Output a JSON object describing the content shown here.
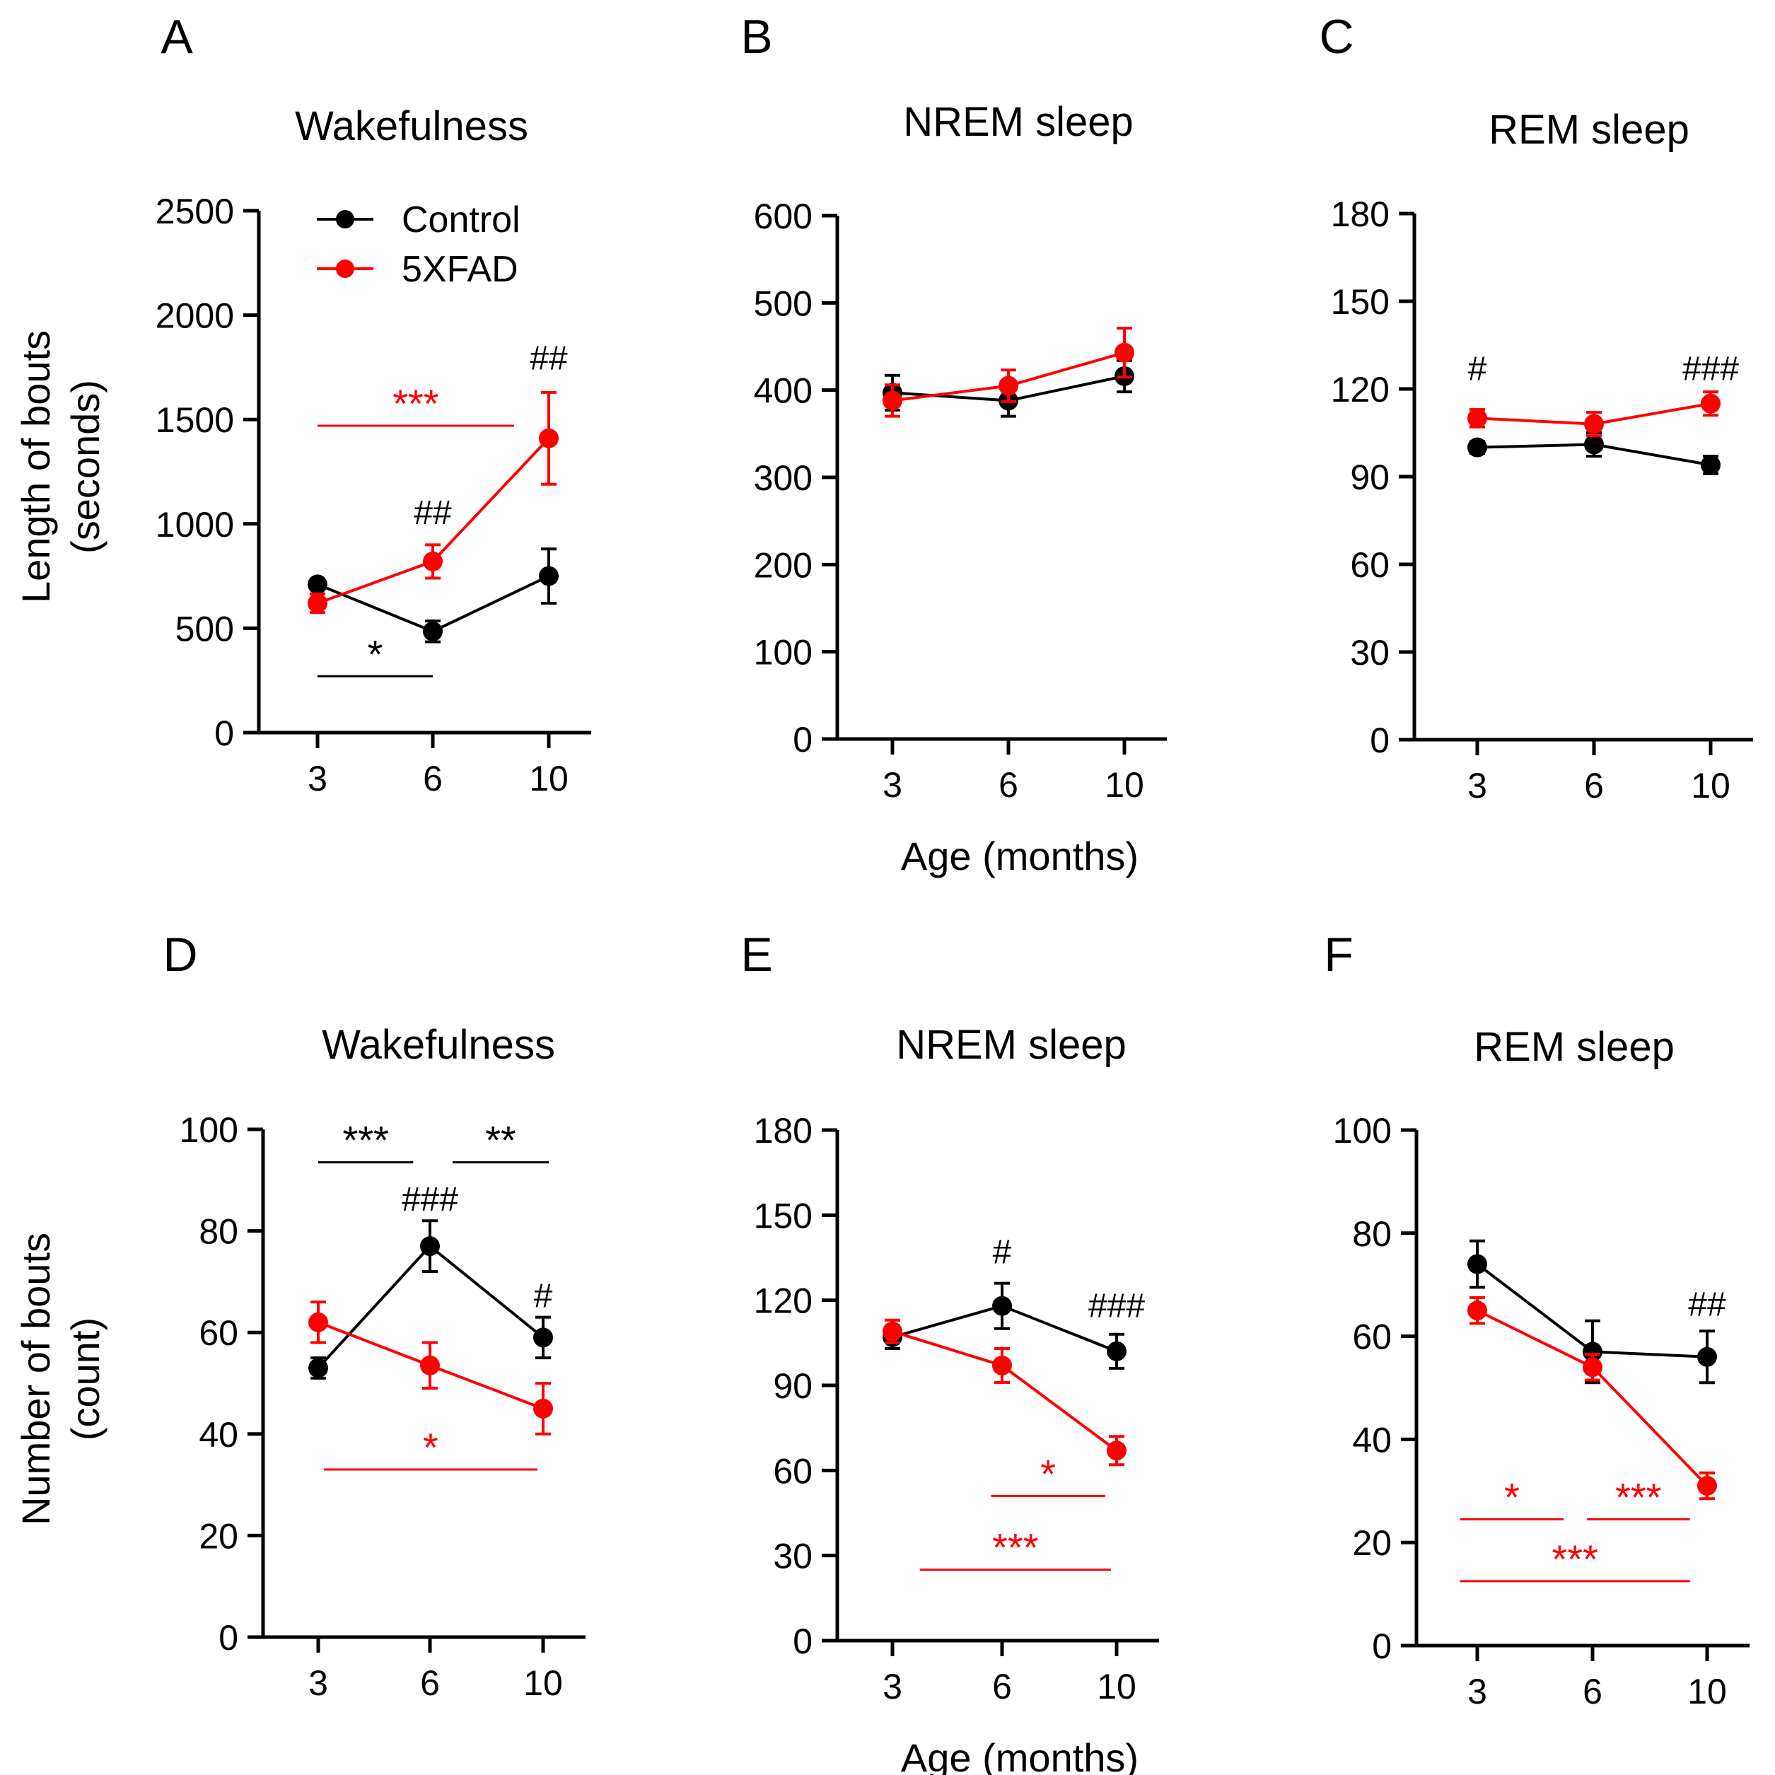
{
  "colors": {
    "control": "#000000",
    "xfad": "#ff0000",
    "axis": "#000000"
  },
  "shared": {
    "x_axis_label": "Age (months)",
    "y_label_top": [
      "Length of bouts",
      "(seconds)"
    ],
    "y_label_bottom": [
      "Number of bouts",
      "(count)"
    ]
  },
  "chart_data": [
    {
      "type": "line",
      "panel": "A",
      "title": "Wakefulness",
      "categories": [
        "3",
        "6",
        "10"
      ],
      "ylim": [
        0,
        2500
      ],
      "yticks": [
        0,
        500,
        1000,
        1500,
        2000,
        2500
      ],
      "legend": {
        "position": "top-left",
        "entries": [
          "Control",
          "5XFAD"
        ]
      },
      "series": [
        {
          "name": "Control",
          "values": [
            710,
            485,
            750
          ],
          "errors": [
            20,
            50,
            130
          ]
        },
        {
          "name": "5XFAD",
          "values": [
            620,
            820,
            1410
          ],
          "errors": [
            45,
            80,
            220
          ]
        }
      ],
      "annotations": [
        {
          "text": "##",
          "color": "black",
          "cat": 1,
          "y": 1000
        },
        {
          "text": "##",
          "color": "black",
          "cat": 2,
          "y": 1740
        }
      ],
      "brackets": [
        {
          "text": "***",
          "color": "red",
          "from": 0,
          "to": 1.7,
          "y": 1470
        },
        {
          "text": "*",
          "color": "black",
          "from": 0,
          "to": 1,
          "y": 270
        }
      ]
    },
    {
      "type": "line",
      "panel": "B",
      "title": "NREM sleep",
      "categories": [
        "3",
        "6",
        "10"
      ],
      "ylim": [
        0,
        600
      ],
      "yticks": [
        0,
        100,
        200,
        300,
        400,
        500,
        600
      ],
      "show_x_label": true,
      "series": [
        {
          "name": "Control",
          "values": [
            397,
            388,
            416
          ],
          "errors": [
            20,
            18,
            18
          ]
        },
        {
          "name": "5XFAD",
          "values": [
            388,
            405,
            443
          ],
          "errors": [
            18,
            18,
            28
          ]
        }
      ],
      "annotations": [],
      "brackets": []
    },
    {
      "type": "line",
      "panel": "C",
      "title": "REM sleep",
      "categories": [
        "3",
        "6",
        "10"
      ],
      "ylim": [
        0,
        180
      ],
      "yticks": [
        0,
        30,
        60,
        90,
        120,
        150,
        180
      ],
      "series": [
        {
          "name": "Control",
          "values": [
            100,
            101,
            94
          ],
          "errors": [
            2,
            4,
            3
          ]
        },
        {
          "name": "5XFAD",
          "values": [
            110,
            108,
            115
          ],
          "errors": [
            3,
            4,
            4
          ]
        }
      ],
      "annotations": [
        {
          "text": "#",
          "color": "black",
          "cat": 0,
          "y": 123
        },
        {
          "text": "###",
          "color": "black",
          "cat": 2,
          "y": 123
        }
      ],
      "brackets": []
    },
    {
      "type": "line",
      "panel": "D",
      "title": "Wakefulness",
      "categories": [
        "3",
        "6",
        "10"
      ],
      "ylim": [
        0,
        100
      ],
      "yticks": [
        0,
        20,
        40,
        60,
        80,
        100
      ],
      "series": [
        {
          "name": "Control",
          "values": [
            53,
            77,
            59
          ],
          "errors": [
            2,
            5,
            4
          ]
        },
        {
          "name": "5XFAD",
          "values": [
            62,
            53.5,
            45
          ],
          "errors": [
            4,
            4.5,
            5
          ]
        }
      ],
      "annotations": [
        {
          "text": "###",
          "color": "black",
          "cat": 1,
          "y": 84
        },
        {
          "text": "#",
          "color": "black",
          "cat": 2,
          "y": 65
        }
      ],
      "brackets": [
        {
          "text": "***",
          "color": "black",
          "from": 0,
          "to": 0.85,
          "y": 93.5
        },
        {
          "text": "**",
          "color": "black",
          "from": 1.2,
          "to": 2.05,
          "y": 93.5
        },
        {
          "text": "*",
          "color": "red",
          "from": 0.05,
          "to": 1.95,
          "y": 33
        }
      ]
    },
    {
      "type": "line",
      "panel": "E",
      "title": "NREM sleep",
      "categories": [
        "3",
        "6",
        "10"
      ],
      "ylim": [
        0,
        180
      ],
      "yticks": [
        0,
        30,
        60,
        90,
        120,
        150,
        180
      ],
      "show_x_label": true,
      "series": [
        {
          "name": "Control",
          "values": [
            107,
            118,
            102
          ],
          "errors": [
            4,
            8,
            6
          ]
        },
        {
          "name": "5XFAD",
          "values": [
            109,
            97,
            67
          ],
          "errors": [
            4,
            6,
            5
          ]
        }
      ],
      "annotations": [
        {
          "text": "#",
          "color": "black",
          "cat": 1,
          "y": 133
        },
        {
          "text": "###",
          "color": "black",
          "cat": 2,
          "y": 114
        }
      ],
      "brackets": [
        {
          "text": "*",
          "color": "red",
          "from": 0.9,
          "to": 1.9,
          "y": 51
        },
        {
          "text": "***",
          "color": "red",
          "from": 0.25,
          "to": 1.95,
          "y": 25
        }
      ]
    },
    {
      "type": "line",
      "panel": "F",
      "title": "REM sleep",
      "categories": [
        "3",
        "6",
        "10"
      ],
      "ylim": [
        0,
        100
      ],
      "yticks": [
        0,
        20,
        40,
        60,
        80,
        100
      ],
      "series": [
        {
          "name": "Control",
          "values": [
            74,
            57,
            56
          ],
          "errors": [
            4.5,
            6,
            5
          ]
        },
        {
          "name": "5XFAD",
          "values": [
            65,
            54,
            31
          ],
          "errors": [
            2.5,
            2.5,
            2.5
          ]
        }
      ],
      "annotations": [
        {
          "text": "##",
          "color": "black",
          "cat": 2,
          "y": 64
        }
      ],
      "brackets": [
        {
          "text": "*",
          "color": "red",
          "from": -0.15,
          "to": 0.75,
          "y": 24.5
        },
        {
          "text": "***",
          "color": "red",
          "from": 0.95,
          "to": 1.85,
          "y": 24.5
        },
        {
          "text": "***",
          "color": "red",
          "from": -0.15,
          "to": 1.85,
          "y": 12.5
        }
      ]
    }
  ]
}
